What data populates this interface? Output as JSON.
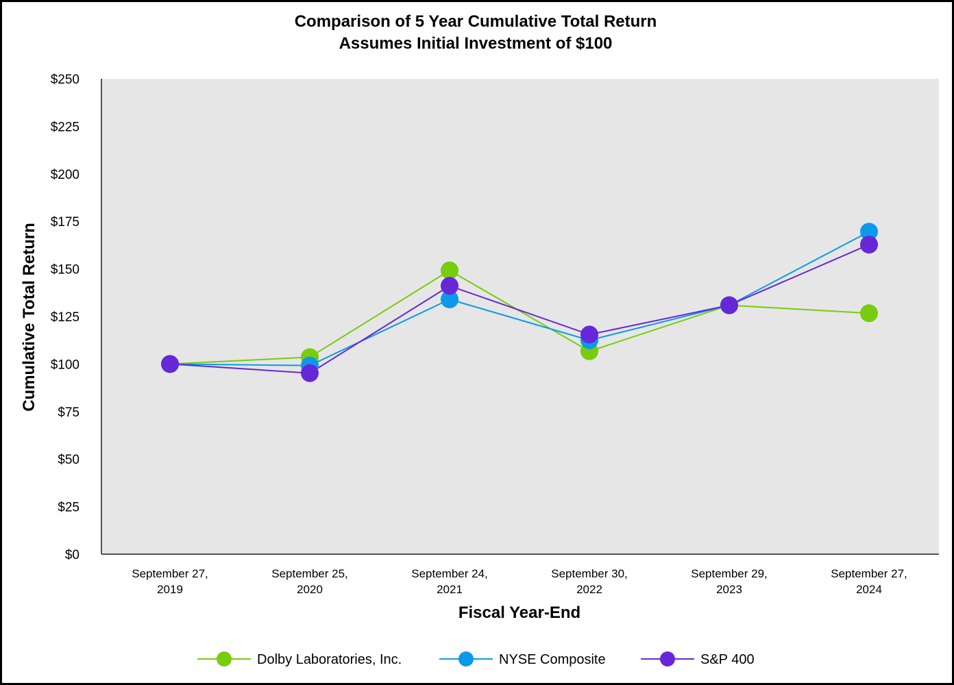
{
  "chart_data": {
    "type": "line",
    "title": "Comparison of 5 Year Cumulative Total Return",
    "subtitle": "Assumes Initial Investment of $100",
    "xlabel": "Fiscal Year-End",
    "ylabel": "Cumulative Total Return",
    "ylim": [
      0,
      250
    ],
    "yticks": [
      "$0",
      "$25",
      "$50",
      "$75",
      "$100",
      "$125",
      "$150",
      "$175",
      "$200",
      "$225",
      "$250"
    ],
    "ytick_values": [
      0,
      25,
      50,
      75,
      100,
      125,
      150,
      175,
      200,
      225,
      250
    ],
    "categories": [
      [
        "September 27,",
        "2019"
      ],
      [
        "September 25,",
        "2020"
      ],
      [
        "September 24,",
        "2021"
      ],
      [
        "September 30,",
        "2022"
      ],
      [
        "September 29,",
        "2023"
      ],
      [
        "September 27,",
        "2024"
      ]
    ],
    "grid": false,
    "legend_position": "bottom",
    "series": [
      {
        "name": "Dolby Laboratories, Inc.",
        "color": "#77cc0e",
        "values": [
          100,
          103.6,
          149.2,
          106.7,
          130.9,
          126.7
        ]
      },
      {
        "name": "NYSE Composite",
        "color": "#0d99ea",
        "values": [
          100,
          99.2,
          134,
          112.5,
          130.9,
          169.6
        ]
      },
      {
        "name": "S&P 400",
        "color": "#6627d9",
        "values": [
          100,
          95.2,
          141.1,
          115.5,
          130.9,
          162.8
        ]
      }
    ]
  }
}
